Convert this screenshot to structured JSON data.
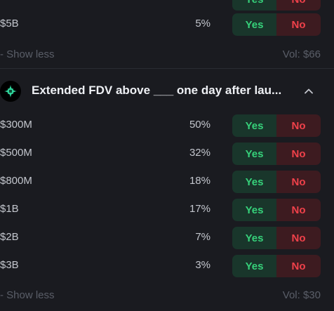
{
  "top_group": {
    "rows": [
      {
        "label": "",
        "pct": "",
        "yes": "Yes",
        "no": "No"
      },
      {
        "label": "$5B",
        "pct": "5%",
        "yes": "Yes",
        "no": "No"
      }
    ],
    "show_less": "- Show less",
    "volume": "Vol: $66"
  },
  "market": {
    "logo_icon": "green-star-logo-icon",
    "title": "Extended FDV above ___ one day after lau...",
    "toggle_icon": "chevron-up-icon",
    "rows": [
      {
        "label": "$300M",
        "pct": "50%",
        "yes": "Yes",
        "no": "No"
      },
      {
        "label": "$500M",
        "pct": "32%",
        "yes": "Yes",
        "no": "No"
      },
      {
        "label": "$800M",
        "pct": "18%",
        "yes": "Yes",
        "no": "No"
      },
      {
        "label": "$1B",
        "pct": "17%",
        "yes": "Yes",
        "no": "No"
      },
      {
        "label": "$2B",
        "pct": "7%",
        "yes": "Yes",
        "no": "No"
      },
      {
        "label": "$3B",
        "pct": "3%",
        "yes": "Yes",
        "no": "No"
      }
    ],
    "show_less": "- Show less",
    "volume": "Vol: $30"
  },
  "colors": {
    "background": "#1a1b20",
    "yes_bg": "#19362b",
    "yes_text": "#36d17a",
    "no_bg": "#3d1b20",
    "no_text": "#f0414a",
    "logo_accent": "#2fd39a"
  }
}
